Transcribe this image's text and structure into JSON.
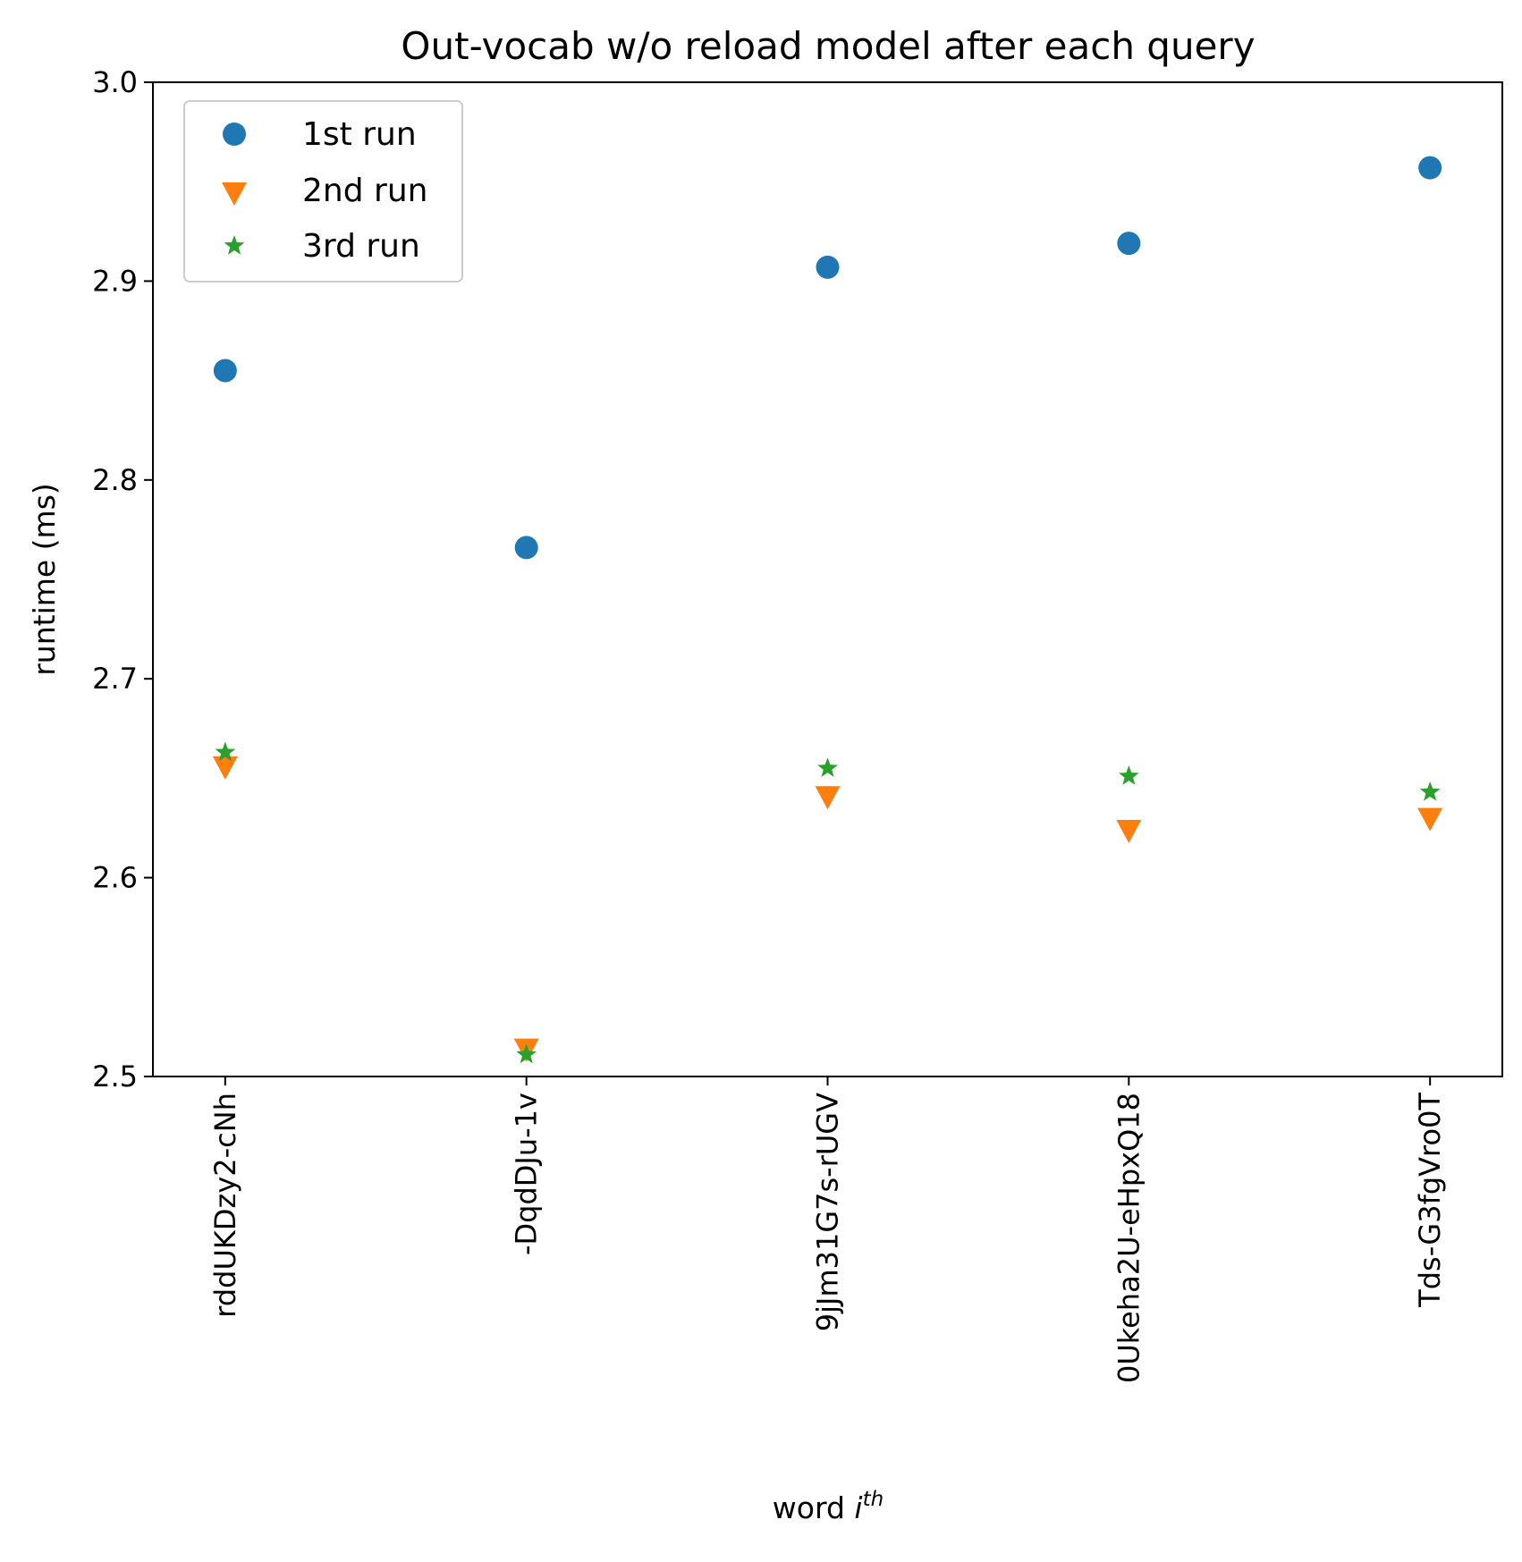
{
  "chart_data": {
    "type": "scatter",
    "title": "Out-vocab w/o reload model after each query",
    "xlabel_text": "word ",
    "xlabel_italic": "i",
    "xlabel_superscript": "th",
    "ylabel": "runtime (ms)",
    "categories": [
      "rddUKDzy2-cNh",
      "-DqdDJu-1v",
      "9jJm31G7s-rUGV",
      "0Ukeha2U-eHpxQ18",
      "Tds-G3fgVro0T"
    ],
    "ylim": [
      2.5,
      3.0
    ],
    "yticks": [
      "2.5",
      "2.6",
      "2.7",
      "2.8",
      "2.9",
      "3.0"
    ],
    "grid": false,
    "legend_position": "upper-left",
    "series": [
      {
        "name": "1st run",
        "marker": "circle",
        "color": "#1f77b4",
        "values": [
          2.855,
          2.766,
          2.907,
          2.919,
          2.957
        ]
      },
      {
        "name": "2nd run",
        "marker": "triangle-down",
        "color": "#ff7f0e",
        "values": [
          2.657,
          2.515,
          2.642,
          2.625,
          2.631
        ]
      },
      {
        "name": "3rd run",
        "marker": "star",
        "color": "#2ca02c",
        "values": [
          2.663,
          2.511,
          2.655,
          2.651,
          2.643
        ]
      }
    ]
  }
}
